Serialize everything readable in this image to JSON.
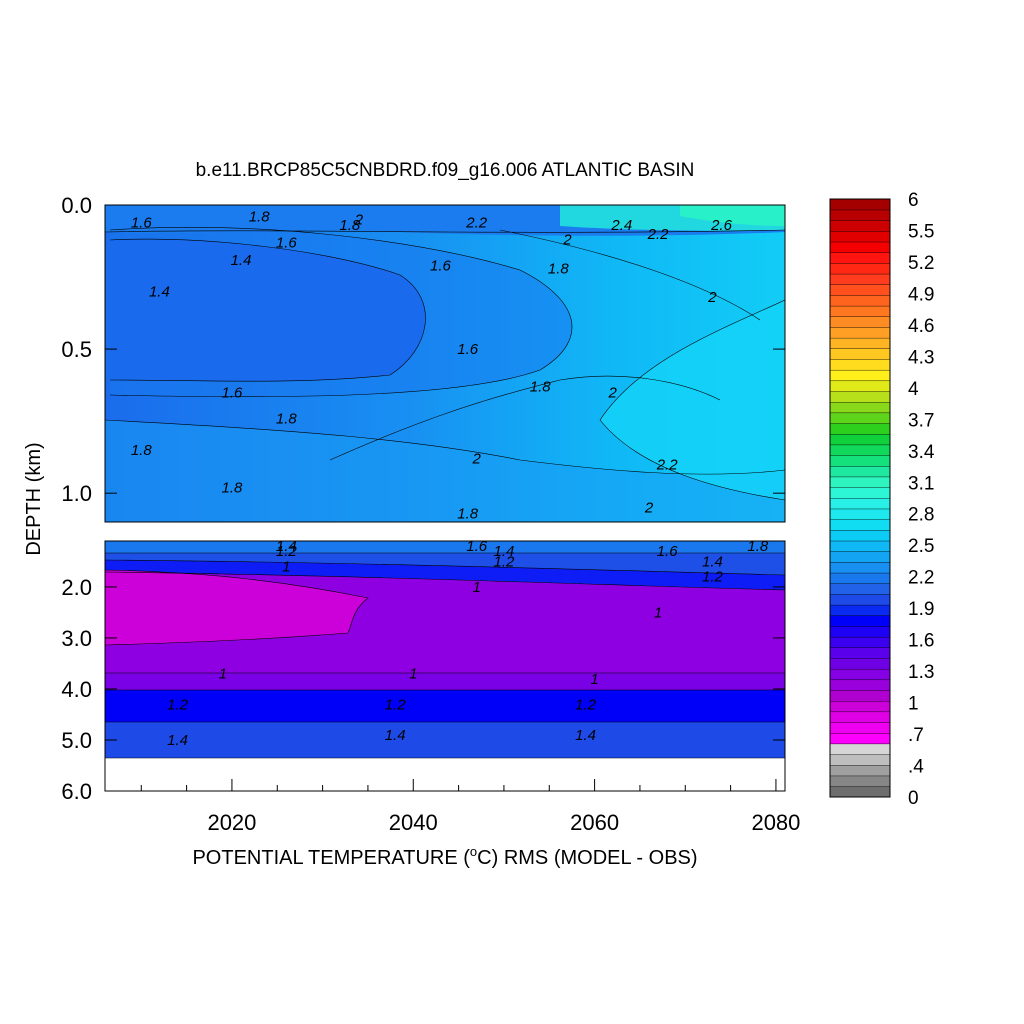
{
  "chart_data": {
    "type": "heatmap",
    "title": "b.e11.BRCP85C5CNBDRD.f09_g16.006 ATLANTIC BASIN",
    "xlabel": "POTENTIAL TEMPERATURE (",
    "xlabel_unit_sup": "o",
    "xlabel_rest": "C) RMS (MODEL - OBS)",
    "ylabel": "DEPTH (km)",
    "x_range": [
      2006,
      2081
    ],
    "x_ticks": [
      {
        "value": 2020,
        "label": "2020"
      },
      {
        "value": 2040,
        "label": "2040"
      },
      {
        "value": 2060,
        "label": "2060"
      },
      {
        "value": 2080,
        "label": "2080"
      }
    ],
    "panels": [
      {
        "name": "upper",
        "depth_range": [
          0.0,
          1.1
        ],
        "y_ticks": [
          {
            "value": 0.0,
            "label": "0.0"
          },
          {
            "value": 0.5,
            "label": "0.5"
          },
          {
            "value": 1.0,
            "label": "1.0"
          }
        ],
        "bands": [
          {
            "depth": [
              0.0,
              0.06
            ],
            "rms": [
              1.8,
              1.8,
              2.2,
              2.5
            ],
            "note": "noisy surface layer"
          },
          {
            "depth": [
              0.06,
              0.2
            ],
            "rms": [
              1.6,
              1.7,
              1.9,
              2.2
            ]
          },
          {
            "depth": [
              0.2,
              0.55
            ],
            "rms": [
              1.4,
              1.5,
              1.8,
              2.1
            ]
          },
          {
            "depth": [
              0.55,
              0.75
            ],
            "rms": [
              1.6,
              1.7,
              1.9,
              2.2
            ]
          },
          {
            "depth": [
              0.75,
              1.1
            ],
            "rms": [
              1.8,
              1.8,
              2.0,
              2.3
            ]
          }
        ],
        "contour_labels": [
          {
            "x": 2010,
            "depth": 0.06,
            "text": "1.6"
          },
          {
            "x": 2023,
            "depth": 0.04,
            "text": "1.8"
          },
          {
            "x": 2033,
            "depth": 0.07,
            "text": "1.8"
          },
          {
            "x": 2034,
            "depth": 0.05,
            "text": "2"
          },
          {
            "x": 2026,
            "depth": 0.13,
            "text": "1.6"
          },
          {
            "x": 2021,
            "depth": 0.19,
            "text": "1.4"
          },
          {
            "x": 2012,
            "depth": 0.3,
            "text": "1.4"
          },
          {
            "x": 2047,
            "depth": 0.06,
            "text": "2.2"
          },
          {
            "x": 2063,
            "depth": 0.07,
            "text": "2.4"
          },
          {
            "x": 2067,
            "depth": 0.1,
            "text": "2.2"
          },
          {
            "x": 2074,
            "depth": 0.07,
            "text": "2.6"
          },
          {
            "x": 2057,
            "depth": 0.12,
            "text": "2"
          },
          {
            "x": 2056,
            "depth": 0.22,
            "text": "1.8"
          },
          {
            "x": 2043,
            "depth": 0.21,
            "text": "1.6"
          },
          {
            "x": 2073,
            "depth": 0.32,
            "text": "2"
          },
          {
            "x": 2046,
            "depth": 0.5,
            "text": "1.6"
          },
          {
            "x": 2054,
            "depth": 0.63,
            "text": "1.8"
          },
          {
            "x": 2062,
            "depth": 0.65,
            "text": "2"
          },
          {
            "x": 2020,
            "depth": 0.65,
            "text": "1.6"
          },
          {
            "x": 2026,
            "depth": 0.74,
            "text": "1.8"
          },
          {
            "x": 2010,
            "depth": 0.85,
            "text": "1.8"
          },
          {
            "x": 2047,
            "depth": 0.88,
            "text": "2"
          },
          {
            "x": 2068,
            "depth": 0.9,
            "text": "2.2"
          },
          {
            "x": 2020,
            "depth": 0.98,
            "text": "1.8"
          },
          {
            "x": 2046,
            "depth": 1.07,
            "text": "1.8"
          },
          {
            "x": 2066,
            "depth": 1.05,
            "text": "2"
          }
        ]
      },
      {
        "name": "lower",
        "depth_range": [
          1.1,
          6.0
        ],
        "y_ticks": [
          {
            "value": 2.0,
            "label": "2.0"
          },
          {
            "value": 3.0,
            "label": "3.0"
          },
          {
            "value": 4.0,
            "label": "4.0"
          },
          {
            "value": 5.0,
            "label": "5.0"
          },
          {
            "value": 6.0,
            "label": "6.0"
          }
        ],
        "bands": [
          {
            "depth": [
              1.1,
              1.5
            ],
            "rms": [
              1.5,
              1.5,
              1.6,
              1.7
            ]
          },
          {
            "depth": [
              1.5,
              1.9
            ],
            "rms": [
              1.1,
              1.1,
              1.2,
              1.3
            ]
          },
          {
            "depth": [
              1.9,
              3.0
            ],
            "rms": [
              0.8,
              0.9,
              1.0,
              1.0
            ],
            "note": "low-error pocket 2006-2035"
          },
          {
            "depth": [
              3.0,
              4.0
            ],
            "rms": [
              1.0,
              1.0,
              1.0,
              1.0
            ]
          },
          {
            "depth": [
              4.0,
              4.7
            ],
            "rms": [
              1.2,
              1.2,
              1.2,
              1.2
            ]
          },
          {
            "depth": [
              4.7,
              5.4
            ],
            "rms": [
              1.4,
              1.4,
              1.4,
              1.4
            ]
          }
        ],
        "contour_labels": [
          {
            "x": 2026,
            "depth": 1.2,
            "text": "1.4"
          },
          {
            "x": 2026,
            "depth": 1.3,
            "text": "1.2"
          },
          {
            "x": 2026,
            "depth": 1.6,
            "text": "1"
          },
          {
            "x": 2047,
            "depth": 1.2,
            "text": "1.6"
          },
          {
            "x": 2050,
            "depth": 1.3,
            "text": "1.4"
          },
          {
            "x": 2050,
            "depth": 1.5,
            "text": "1.2"
          },
          {
            "x": 2047,
            "depth": 2.0,
            "text": "1"
          },
          {
            "x": 2068,
            "depth": 1.3,
            "text": "1.6"
          },
          {
            "x": 2073,
            "depth": 1.5,
            "text": "1.4"
          },
          {
            "x": 2073,
            "depth": 1.8,
            "text": "1.2"
          },
          {
            "x": 2078,
            "depth": 1.2,
            "text": "1.8"
          },
          {
            "x": 2067,
            "depth": 2.5,
            "text": "1"
          },
          {
            "x": 2019,
            "depth": 3.7,
            "text": "1"
          },
          {
            "x": 2040,
            "depth": 3.7,
            "text": "1"
          },
          {
            "x": 2060,
            "depth": 3.8,
            "text": "1"
          },
          {
            "x": 2014,
            "depth": 4.3,
            "text": "1.2"
          },
          {
            "x": 2038,
            "depth": 4.3,
            "text": "1.2"
          },
          {
            "x": 2059,
            "depth": 4.3,
            "text": "1.2"
          },
          {
            "x": 2014,
            "depth": 5.0,
            "text": "1.4"
          },
          {
            "x": 2038,
            "depth": 4.9,
            "text": "1.4"
          },
          {
            "x": 2059,
            "depth": 4.9,
            "text": "1.4"
          }
        ]
      }
    ],
    "colorbar": {
      "range": [
        0,
        6
      ],
      "tick_labels": [
        "6",
        "5.5",
        "5.2",
        "4.9",
        "4.6",
        "4.3",
        "4",
        "3.7",
        "3.4",
        "3.1",
        "2.8",
        "2.5",
        "2.2",
        "1.9",
        "1.6",
        "1.3",
        "1",
        ".7",
        ".4",
        "0"
      ],
      "colors": [
        "#6e6e6e",
        "#868686",
        "#a0a0a0",
        "#bebebe",
        "#d6d6d6",
        "#ff00ff",
        "#f000f0",
        "#e000e6",
        "#cc00d8",
        "#b000d0",
        "#9a00dc",
        "#8600e4",
        "#6f00e6",
        "#5a00ea",
        "#3c00f0",
        "#1e00f4",
        "#0000f8",
        "#0a2af0",
        "#1e4ae8",
        "#2262e8",
        "#1a78ee",
        "#1890f2",
        "#14a4f4",
        "#10b8f6",
        "#0cccf6",
        "#10dcf2",
        "#1ee8ee",
        "#28f0e6",
        "#2cf6d6",
        "#2ef4c0",
        "#1ee8a0",
        "#14e07c",
        "#10d85a",
        "#10d03c",
        "#2ed01e",
        "#5ed41a",
        "#8ad81a",
        "#b8e01a",
        "#e0ea18",
        "#fff01c",
        "#ffdc1e",
        "#ffc820",
        "#ffb424",
        "#ffa024",
        "#ff8c22",
        "#ff7820",
        "#ff641e",
        "#ff501e",
        "#ff3c1e",
        "#ff2814",
        "#ff1410",
        "#f40000",
        "#e00000",
        "#cc0000",
        "#b80000",
        "#a40000"
      ]
    }
  }
}
